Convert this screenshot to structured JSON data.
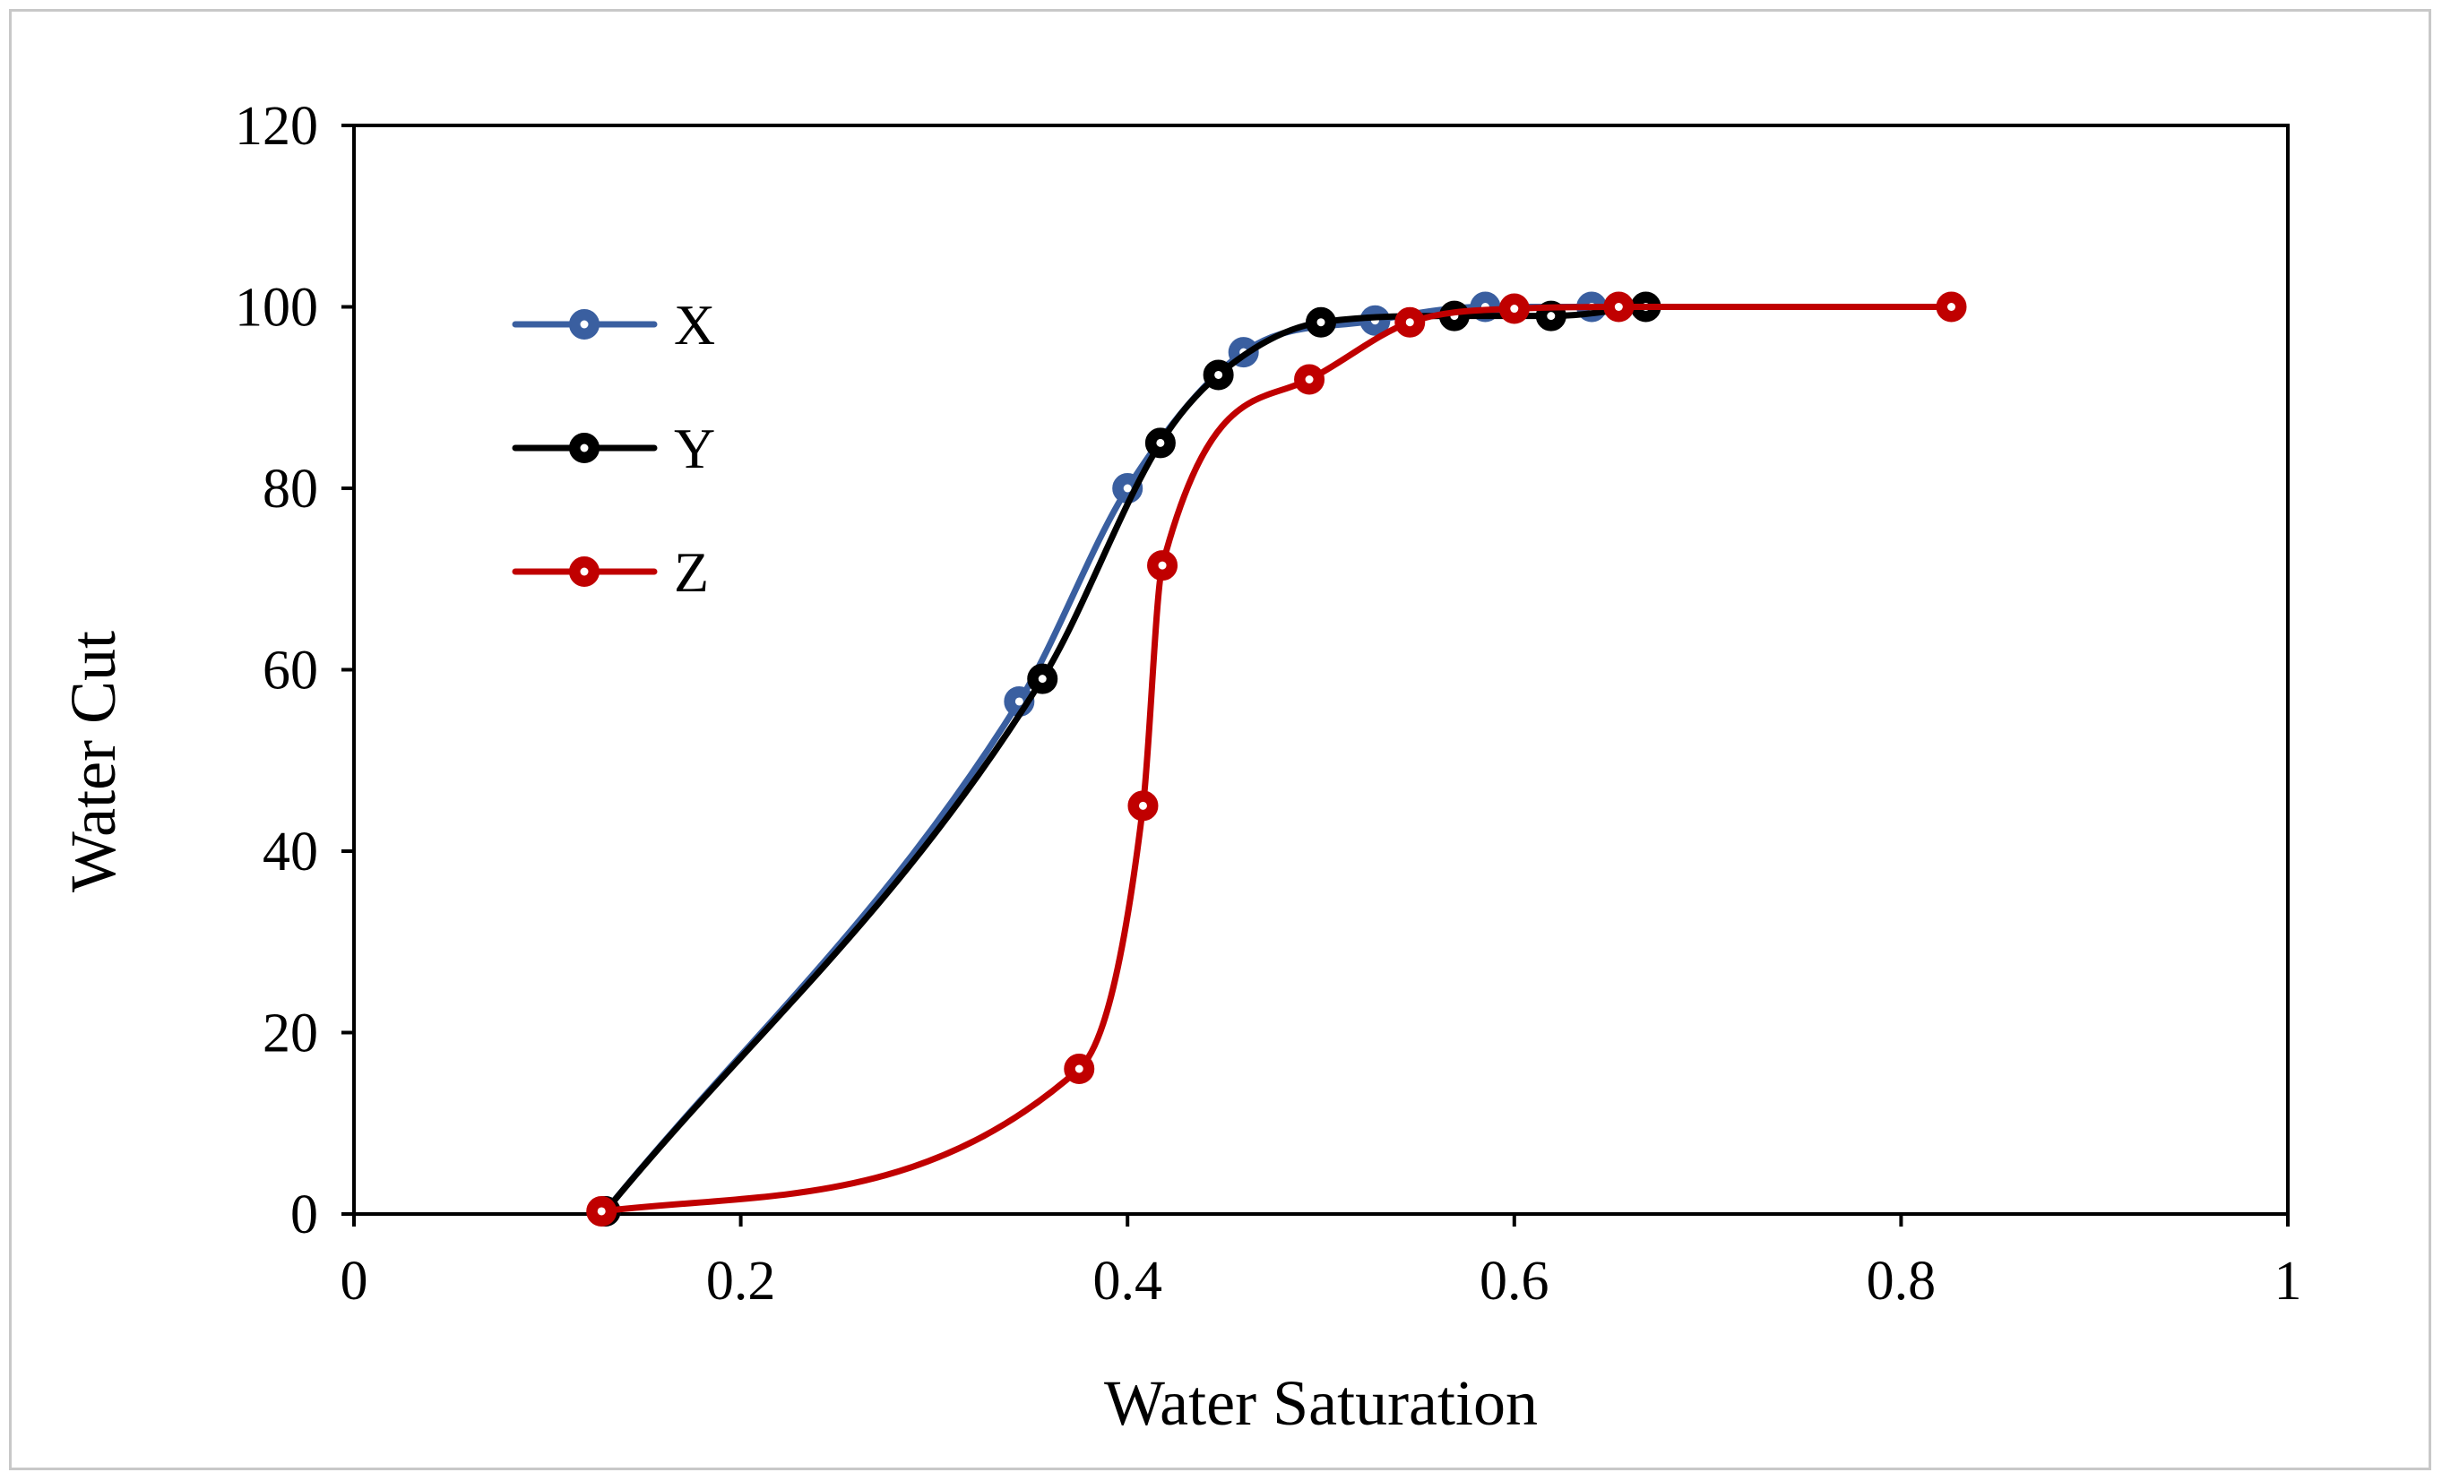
{
  "chart_data": {
    "type": "line",
    "title": "",
    "xlabel": "Water Saturation",
    "ylabel": "Water Cut",
    "xlim": [
      0,
      1
    ],
    "ylim": [
      0,
      120
    ],
    "xticks": [
      0,
      0.2,
      0.4,
      0.6,
      0.8,
      1
    ],
    "xtick_labels": [
      "0",
      "0.2",
      "0.4",
      "0.6",
      "0.8",
      "1"
    ],
    "yticks": [
      0,
      20,
      40,
      60,
      80,
      100,
      120
    ],
    "ytick_labels": [
      "0",
      "20",
      "40",
      "60",
      "80",
      "100",
      "120"
    ],
    "grid": false,
    "legend_position": "upper-left inside",
    "series": [
      {
        "name": "X",
        "color": "#3a5fa0",
        "x": [
          0.13,
          0.344,
          0.4,
          0.46,
          0.528,
          0.585,
          0.64
        ],
        "y": [
          0.3,
          56.5,
          80,
          95,
          98.5,
          100,
          100
        ]
      },
      {
        "name": "Y",
        "color": "#000000",
        "x": [
          0.13,
          0.356,
          0.417,
          0.447,
          0.5,
          0.569,
          0.619,
          0.668
        ],
        "y": [
          0.3,
          59,
          85,
          92.5,
          98.3,
          99,
          99,
          100
        ]
      },
      {
        "name": "Z",
        "color": "#c00000",
        "x": [
          0.128,
          0.375,
          0.408,
          0.418,
          0.494,
          0.546,
          0.6,
          0.654,
          0.826
        ],
        "y": [
          0.3,
          16,
          45,
          71.5,
          92,
          98.3,
          99.8,
          100,
          100
        ]
      }
    ]
  }
}
